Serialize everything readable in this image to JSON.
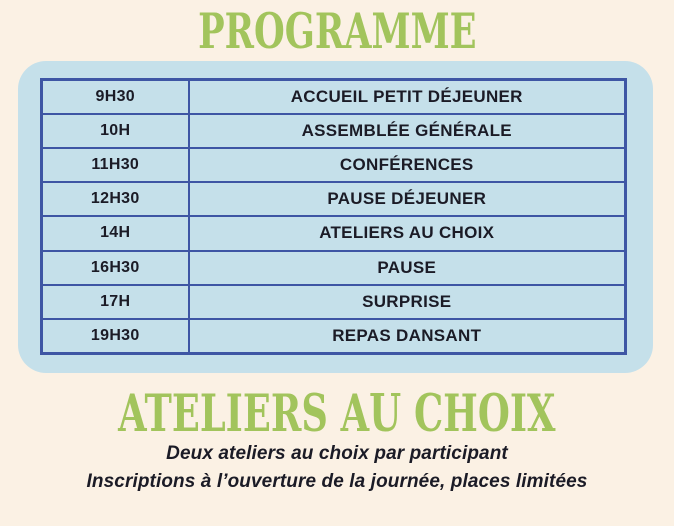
{
  "page": {
    "title": "PROGRAMME",
    "section_title": "ATELIERS AU CHOIX"
  },
  "schedule": {
    "rows": [
      {
        "time": "9H30",
        "activity": "ACCUEIL PETIT DÉJEUNER"
      },
      {
        "time": "10H",
        "activity": "ASSEMBLÉE GÉNÉRALE"
      },
      {
        "time": "11H30",
        "activity": "CONFÉRENCES"
      },
      {
        "time": "12H30",
        "activity": "PAUSE DÉJEUNER"
      },
      {
        "time": "14H",
        "activity": "ATELIERS AU CHOIX"
      },
      {
        "time": "16H30",
        "activity": "PAUSE"
      },
      {
        "time": "17H",
        "activity": "SURPRISE"
      },
      {
        "time": "19H30",
        "activity": "REPAS DANSANT"
      }
    ]
  },
  "notes": [
    "Deux ateliers au choix par participant",
    "Inscriptions à l’ouverture de la journée, places limitées"
  ],
  "colors": {
    "background": "#fbf1e4",
    "accent_green": "#a2c45c",
    "panel_blue": "#c5e0ea",
    "border_navy": "#3e56a4",
    "text_dark": "#1b1b26"
  }
}
